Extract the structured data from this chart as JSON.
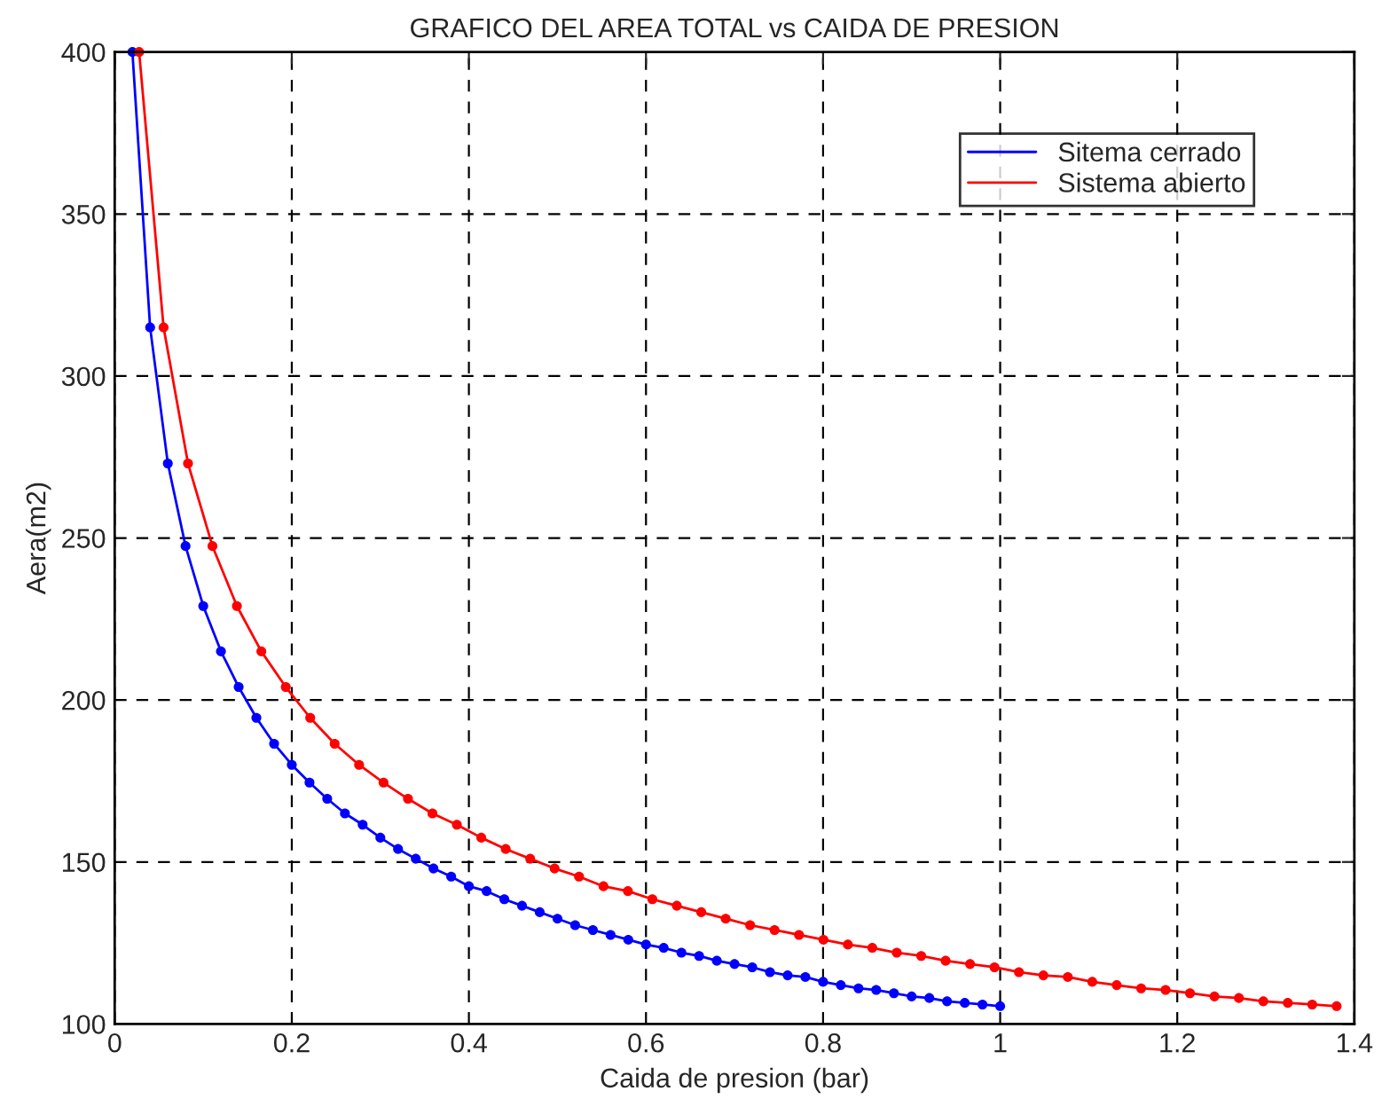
{
  "chart_data": {
    "type": "line",
    "title": "GRAFICO DEL AREA TOTAL vs CAIDA DE PRESION",
    "xlabel": "Caida de presion (bar)",
    "ylabel": "Aera(m2)",
    "xlim": [
      0,
      1.4
    ],
    "ylim": [
      100,
      400
    ],
    "xticks": [
      0,
      0.2,
      0.4,
      0.6,
      0.8,
      1,
      1.2,
      1.4
    ],
    "yticks": [
      100,
      150,
      200,
      250,
      300,
      350,
      400
    ],
    "grid": true,
    "legend": "top right",
    "marker": "circle",
    "line_style": "solid",
    "series": [
      {
        "name": "Sitema cerrado",
        "color": "#0000ff",
        "x": [
          0.02,
          0.04,
          0.06,
          0.08,
          0.1,
          0.12,
          0.14,
          0.16,
          0.18,
          0.2,
          0.22,
          0.24,
          0.26,
          0.28,
          0.3,
          0.32,
          0.34,
          0.36,
          0.38,
          0.4,
          0.42,
          0.44,
          0.46,
          0.48,
          0.5,
          0.52,
          0.54,
          0.56,
          0.58,
          0.6,
          0.62,
          0.64,
          0.66,
          0.68,
          0.7,
          0.72,
          0.74,
          0.76,
          0.78,
          0.8,
          0.82,
          0.84,
          0.86,
          0.88,
          0.9,
          0.92,
          0.94,
          0.96,
          0.98,
          1.0
        ],
        "values": [
          400,
          315,
          273,
          247.5,
          229,
          215,
          204,
          194.5,
          186.5,
          180,
          174.5,
          169.5,
          165,
          161.5,
          157.5,
          154,
          151,
          148,
          145.5,
          142.5,
          141,
          138.5,
          136.5,
          134.5,
          132.5,
          130.5,
          129,
          127.5,
          126,
          124.5,
          123.5,
          122,
          121,
          119.5,
          118.5,
          117.5,
          116,
          115,
          114.5,
          113,
          112,
          111,
          110.5,
          109.5,
          108.5,
          108,
          107,
          106.5,
          106,
          105.5
        ]
      },
      {
        "name": "Sistema abierto",
        "color": "#ff0000",
        "x": [
          0.0276,
          0.0552,
          0.0828,
          0.1104,
          0.138,
          0.1656,
          0.1932,
          0.2208,
          0.2484,
          0.276,
          0.3036,
          0.3312,
          0.3588,
          0.3864,
          0.414,
          0.4416,
          0.4692,
          0.4968,
          0.5244,
          0.552,
          0.5796,
          0.6072,
          0.6348,
          0.6624,
          0.69,
          0.7176,
          0.7452,
          0.7728,
          0.8004,
          0.828,
          0.8556,
          0.8832,
          0.9108,
          0.9384,
          0.966,
          0.9936,
          1.0212,
          1.0488,
          1.0764,
          1.104,
          1.1316,
          1.1592,
          1.1868,
          1.2144,
          1.242,
          1.2696,
          1.2972,
          1.3248,
          1.3524,
          1.38
        ],
        "values": [
          400,
          315,
          273,
          247.5,
          229,
          215,
          204,
          194.5,
          186.5,
          180,
          174.5,
          169.5,
          165,
          161.5,
          157.5,
          154,
          151,
          148,
          145.5,
          142.5,
          141,
          138.5,
          136.5,
          134.5,
          132.5,
          130.5,
          129,
          127.5,
          126,
          124.5,
          123.5,
          122,
          121,
          119.5,
          118.5,
          117.5,
          116,
          115,
          114.5,
          113,
          112,
          111,
          110.5,
          109.5,
          108.5,
          108,
          107,
          106.5,
          106,
          105.5
        ]
      }
    ]
  }
}
